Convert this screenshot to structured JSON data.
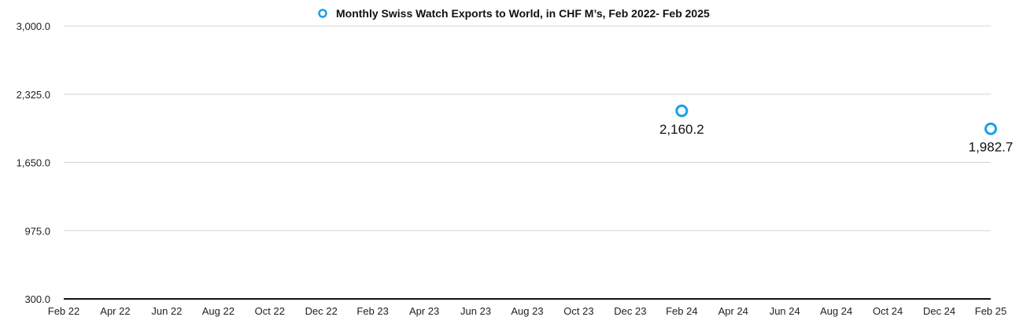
{
  "chart_data": {
    "type": "scatter",
    "title": "",
    "legend": {
      "position": "top-center",
      "entries": [
        {
          "label": "Monthly Swiss Watch Exports to World, in CHF M’s, Feb 2022- Feb 2025",
          "color": "#1AA0E6"
        }
      ]
    },
    "xlabel": "",
    "ylabel": "",
    "x_categories": [
      "Feb 22",
      "Apr 22",
      "Jun 22",
      "Aug 22",
      "Oct 22",
      "Dec 22",
      "Feb 23",
      "Apr 23",
      "Jun 23",
      "Aug 23",
      "Oct 23",
      "Dec 23",
      "Feb 24",
      "Apr 24",
      "Jun 24",
      "Aug 24",
      "Oct 24",
      "Dec 24",
      "Feb 25"
    ],
    "y_ticks": [
      "3,000.0",
      "2,325.0",
      "1,650.0",
      "975.0",
      "300.0"
    ],
    "ylim": [
      300,
      3000
    ],
    "grid": true,
    "series": [
      {
        "name": "Monthly Swiss Watch Exports to World, in CHF M’s, Feb 2022- Feb 2025",
        "color": "#1AA0E6",
        "points": [
          {
            "x": "Feb 24",
            "y": 2160.2,
            "label": "2,160.2"
          },
          {
            "x": "Feb 25",
            "y": 1982.7,
            "label": "1,982.7"
          }
        ]
      }
    ]
  }
}
